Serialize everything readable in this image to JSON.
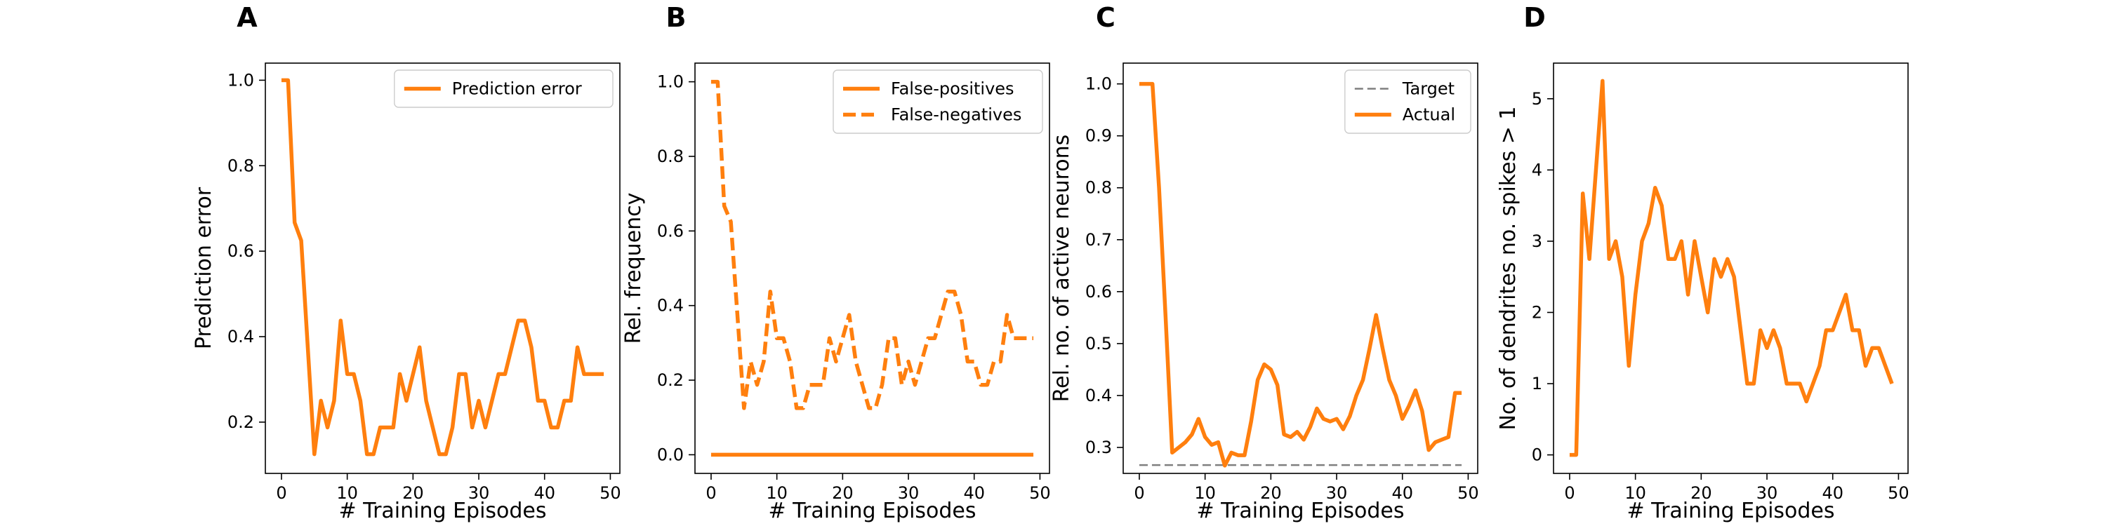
{
  "figure": {
    "panel_count": 4
  },
  "chart_data": [
    {
      "panel": "A",
      "type": "line",
      "xlabel": "# Training Episodes",
      "ylabel": "Prediction error",
      "xlim": [
        -2.45,
        51.45
      ],
      "ylim": [
        0.08,
        1.04
      ],
      "xticks": [
        0,
        10,
        20,
        30,
        40,
        50
      ],
      "yticks": [
        0.2,
        0.4,
        0.6,
        0.8,
        1.0
      ],
      "ytick_labels": [
        "0.2",
        "0.4",
        "0.6",
        "0.8",
        "1.0"
      ],
      "grid": false,
      "legend": "top-right",
      "series": [
        {
          "name": "Prediction error",
          "color": "#ff7f0e",
          "dash": "solid",
          "values": [
            1.0,
            1.0,
            0.667,
            0.625,
            0.375,
            0.125,
            0.25,
            0.1875,
            0.25,
            0.4375,
            0.3125,
            0.3125,
            0.25,
            0.125,
            0.125,
            0.1875,
            0.1875,
            0.1875,
            0.3125,
            0.25,
            0.3125,
            0.375,
            0.25,
            0.1875,
            0.125,
            0.125,
            0.1875,
            0.3125,
            0.3125,
            0.1875,
            0.25,
            0.1875,
            0.25,
            0.3125,
            0.3125,
            0.375,
            0.4375,
            0.4375,
            0.375,
            0.25,
            0.25,
            0.1875,
            0.1875,
            0.25,
            0.25,
            0.375,
            0.3125,
            0.3125,
            0.3125,
            0.3125
          ]
        }
      ]
    },
    {
      "panel": "B",
      "type": "line",
      "xlabel": "# Training Episodes",
      "ylabel": "Rel. frequency",
      "xlim": [
        -2.45,
        51.45
      ],
      "ylim": [
        -0.05,
        1.05
      ],
      "xticks": [
        0,
        10,
        20,
        30,
        40,
        50
      ],
      "yticks": [
        0.0,
        0.2,
        0.4,
        0.6,
        0.8,
        1.0
      ],
      "ytick_labels": [
        "0.0",
        "0.2",
        "0.4",
        "0.6",
        "0.8",
        "1.0"
      ],
      "grid": false,
      "legend": "top-right",
      "series": [
        {
          "name": "False-positives",
          "color": "#ff7f0e",
          "dash": "solid",
          "values": [
            0,
            0,
            0,
            0,
            0,
            0,
            0,
            0,
            0,
            0,
            0,
            0,
            0,
            0,
            0,
            0,
            0,
            0,
            0,
            0,
            0,
            0,
            0,
            0,
            0,
            0,
            0,
            0,
            0,
            0,
            0,
            0,
            0,
            0,
            0,
            0,
            0,
            0,
            0,
            0,
            0,
            0,
            0,
            0,
            0,
            0,
            0,
            0,
            0,
            0
          ]
        },
        {
          "name": "False-negatives",
          "color": "#ff7f0e",
          "dash": "dashed",
          "values": [
            1.0,
            1.0,
            0.667,
            0.625,
            0.375,
            0.125,
            0.25,
            0.1875,
            0.25,
            0.4375,
            0.3125,
            0.3125,
            0.25,
            0.125,
            0.125,
            0.1875,
            0.1875,
            0.1875,
            0.3125,
            0.25,
            0.3125,
            0.375,
            0.25,
            0.1875,
            0.125,
            0.125,
            0.1875,
            0.3125,
            0.3125,
            0.1875,
            0.25,
            0.1875,
            0.25,
            0.3125,
            0.3125,
            0.375,
            0.4375,
            0.4375,
            0.375,
            0.25,
            0.25,
            0.1875,
            0.1875,
            0.25,
            0.25,
            0.375,
            0.3125,
            0.3125,
            0.3125,
            0.3125
          ]
        }
      ]
    },
    {
      "panel": "C",
      "type": "line",
      "xlabel": "# Training Episodes",
      "ylabel": "Rel. no. of active neurons",
      "xlim": [
        -2.45,
        51.45
      ],
      "ylim": [
        0.25,
        1.04
      ],
      "xticks": [
        0,
        10,
        20,
        30,
        40,
        50
      ],
      "yticks": [
        0.3,
        0.4,
        0.5,
        0.6,
        0.7,
        0.8,
        0.9,
        1.0
      ],
      "ytick_labels": [
        "0.3",
        "0.4",
        "0.5",
        "0.6",
        "0.7",
        "0.8",
        "0.9",
        "1.0"
      ],
      "grid": false,
      "legend": "top-right",
      "series": [
        {
          "name": "Target",
          "color": "#7f7f7f",
          "dash": "dashed",
          "values": [
            0.266,
            0.266,
            0.266,
            0.266,
            0.266,
            0.266,
            0.266,
            0.266,
            0.266,
            0.266,
            0.266,
            0.266,
            0.266,
            0.266,
            0.266,
            0.266,
            0.266,
            0.266,
            0.266,
            0.266,
            0.266,
            0.266,
            0.266,
            0.266,
            0.266,
            0.266,
            0.266,
            0.266,
            0.266,
            0.266,
            0.266,
            0.266,
            0.266,
            0.266,
            0.266,
            0.266,
            0.266,
            0.266,
            0.266,
            0.266,
            0.266,
            0.266,
            0.266,
            0.266,
            0.266,
            0.266,
            0.266,
            0.266,
            0.266,
            0.266
          ]
        },
        {
          "name": "Actual",
          "color": "#ff7f0e",
          "dash": "solid",
          "values": [
            1.0,
            1.0,
            1.0,
            0.8,
            0.55,
            0.29,
            0.3,
            0.31,
            0.325,
            0.355,
            0.32,
            0.305,
            0.31,
            0.265,
            0.29,
            0.285,
            0.285,
            0.35,
            0.43,
            0.46,
            0.45,
            0.42,
            0.325,
            0.32,
            0.33,
            0.315,
            0.34,
            0.375,
            0.355,
            0.35,
            0.355,
            0.335,
            0.36,
            0.4,
            0.43,
            0.49,
            0.555,
            0.49,
            0.43,
            0.4,
            0.355,
            0.38,
            0.41,
            0.37,
            0.295,
            0.31,
            0.315,
            0.32,
            0.405,
            0.405
          ]
        }
      ]
    },
    {
      "panel": "D",
      "type": "line",
      "xlabel": "# Training Episodes",
      "ylabel": "No. of dendrites no. spikes > 1",
      "xlim": [
        -2.45,
        51.45
      ],
      "ylim": [
        -0.26,
        5.5
      ],
      "xticks": [
        0,
        10,
        20,
        30,
        40,
        50
      ],
      "yticks": [
        0,
        1,
        2,
        3,
        4,
        5
      ],
      "ytick_labels": [
        "0",
        "1",
        "2",
        "3",
        "4",
        "5"
      ],
      "grid": false,
      "legend": "none",
      "series": [
        {
          "name": "",
          "color": "#ff7f0e",
          "dash": "solid",
          "values": [
            0,
            0,
            3.67,
            2.75,
            4.0,
            5.25,
            2.75,
            3.0,
            2.5,
            1.25,
            2.25,
            3.0,
            3.25,
            3.75,
            3.5,
            2.75,
            2.75,
            3.0,
            2.25,
            3.0,
            2.5,
            2.0,
            2.75,
            2.5,
            2.75,
            2.5,
            1.75,
            1.0,
            1.0,
            1.75,
            1.5,
            1.75,
            1.5,
            1.0,
            1.0,
            1.0,
            0.75,
            1.0,
            1.25,
            1.75,
            1.75,
            2.0,
            2.25,
            1.75,
            1.75,
            1.25,
            1.5,
            1.5,
            1.25,
            1.0
          ]
        }
      ]
    }
  ]
}
